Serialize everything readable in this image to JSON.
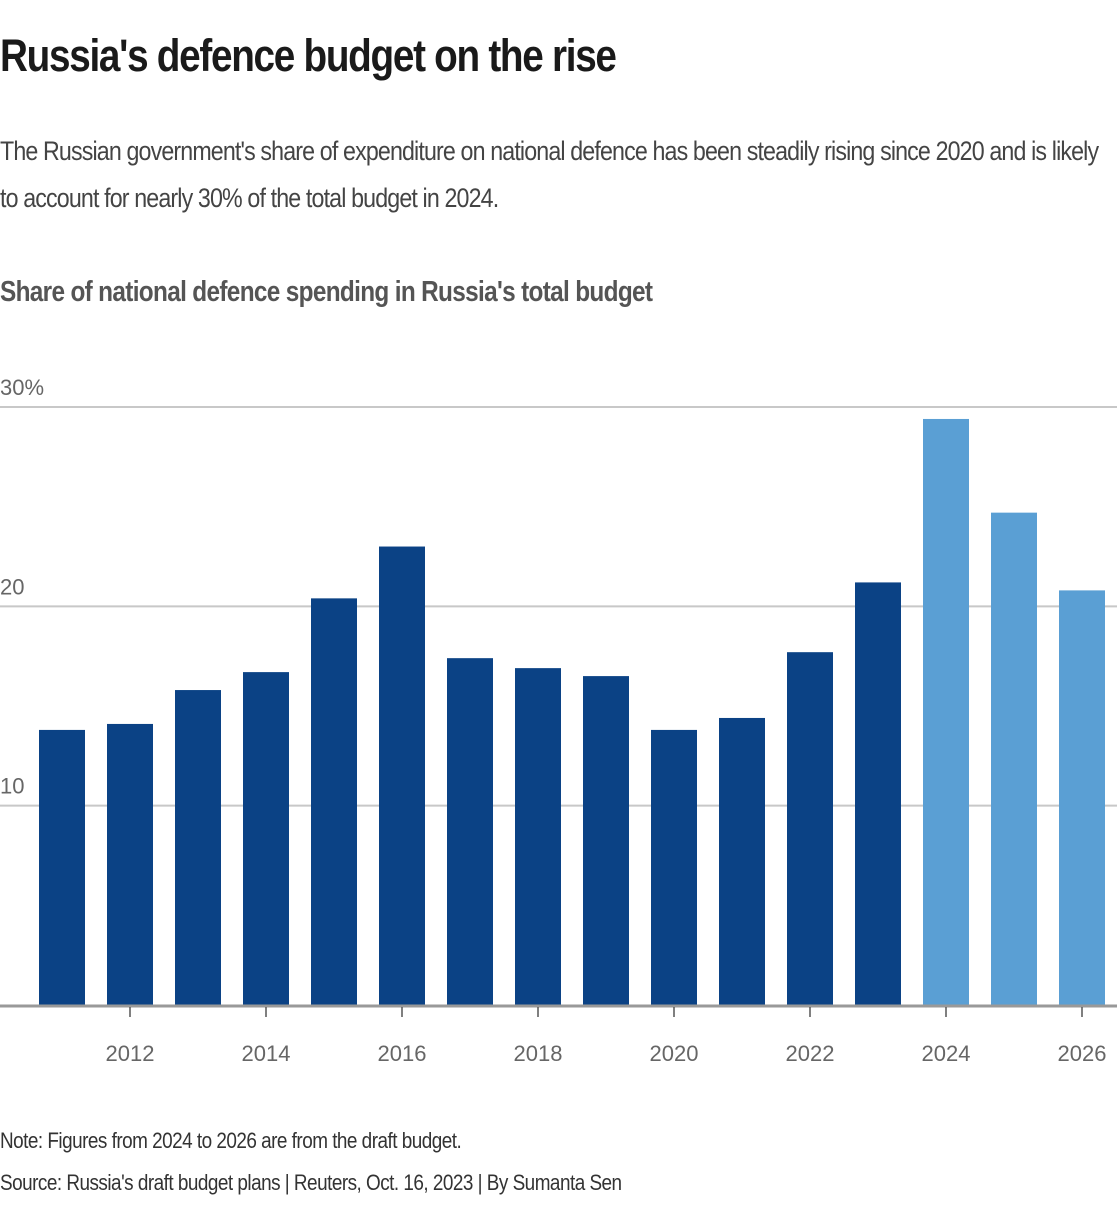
{
  "header": {
    "title": "Russia's defence budget on the rise",
    "subtitle": "The Russian government's share of expenditure on national defence has been steadily rising since 2020 and is likely to account for nearly 30% of the total budget in 2024."
  },
  "chart_data": {
    "type": "bar",
    "title": "Share of national defence spending in Russia's total budget",
    "xlabel": "",
    "ylabel": "",
    "categories": [
      "2011",
      "2012",
      "2013",
      "2014",
      "2015",
      "2016",
      "2017",
      "2018",
      "2019",
      "2020",
      "2021",
      "2022",
      "2023",
      "2024",
      "2025",
      "2026"
    ],
    "values": [
      13.8,
      14.1,
      15.8,
      16.7,
      20.4,
      23.0,
      17.4,
      16.9,
      16.5,
      13.8,
      14.4,
      17.7,
      21.2,
      29.4,
      24.7,
      20.8
    ],
    "series_type": [
      "actual",
      "actual",
      "actual",
      "actual",
      "actual",
      "actual",
      "actual",
      "actual",
      "actual",
      "actual",
      "actual",
      "actual",
      "actual",
      "draft",
      "draft",
      "draft"
    ],
    "colors": {
      "actual": "#0b4285",
      "draft": "#5a9fd4",
      "grid": "#c8c8c8",
      "axis": "#999999"
    },
    "ylim": [
      0,
      30
    ],
    "yticks": [
      {
        "value": 10,
        "label": "10"
      },
      {
        "value": 20,
        "label": "20"
      },
      {
        "value": 30,
        "label": "30%"
      }
    ],
    "xticks": [
      "2012",
      "2014",
      "2016",
      "2018",
      "2020",
      "2022",
      "2024",
      "2026"
    ],
    "grid": true,
    "legend": "none"
  },
  "footer": {
    "note": "Note: Figures from 2024 to 2026 are from the draft budget.",
    "source": "Source: Russia's draft budget plans | Reuters, Oct. 16, 2023 | By Sumanta Sen"
  }
}
